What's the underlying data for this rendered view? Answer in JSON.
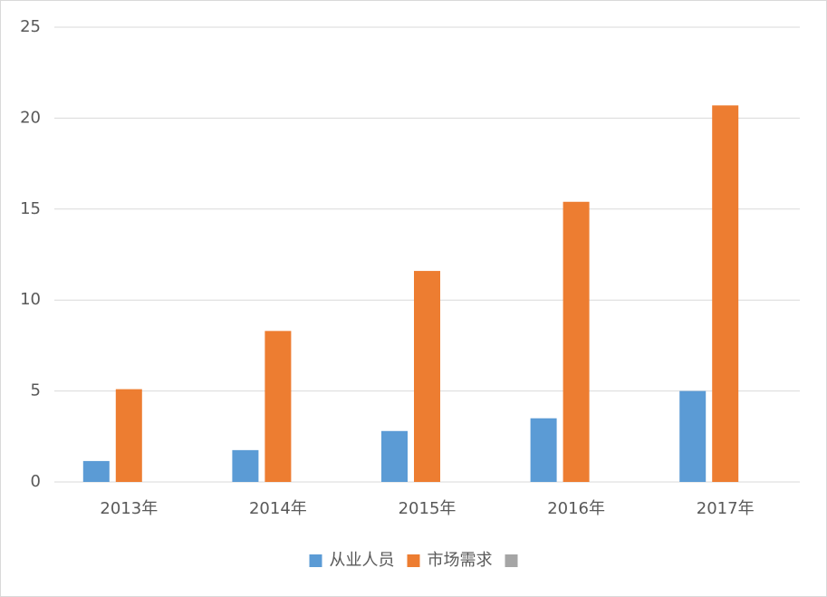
{
  "chart_data": {
    "type": "bar",
    "categories": [
      "2013年",
      "2014年",
      "2015年",
      "2016年",
      "2017年"
    ],
    "series": [
      {
        "name": "从业人员",
        "color": "#5b9bd5",
        "values": [
          1.15,
          1.75,
          2.8,
          3.5,
          5
        ]
      },
      {
        "name": "市场需求",
        "color": "#ed7d31",
        "values": [
          5.1,
          8.3,
          11.6,
          15.4,
          20.7
        ]
      },
      {
        "color": "#a5a5a5",
        "values": [
          null,
          null,
          null,
          null,
          null
        ]
      }
    ],
    "ylim": [
      0,
      25
    ],
    "yticks": [
      0,
      5,
      10,
      15,
      20,
      25
    ],
    "grid": true,
    "legend": "bottom"
  }
}
